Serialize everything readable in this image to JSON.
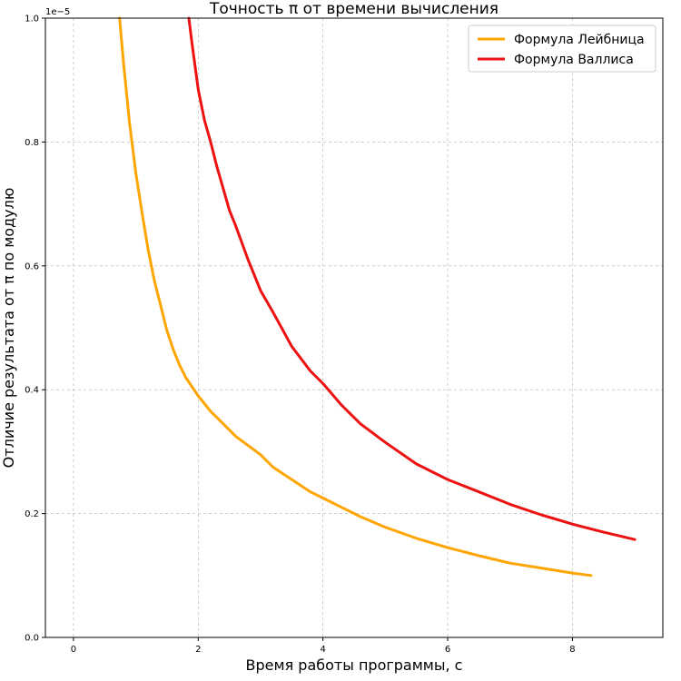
{
  "chart_data": {
    "type": "line",
    "title": "Точность π от времени вычисления",
    "xlabel": "Время работы программы, с",
    "ylabel": "Отличие результата от π по модулю",
    "y_offset_label": "1e−5",
    "xlim": [
      -0.45,
      9.45
    ],
    "ylim": [
      0.0,
      1.0
    ],
    "x_ticks": [
      0,
      2,
      4,
      6,
      8
    ],
    "y_ticks": [
      0.0,
      0.2,
      0.4,
      0.6,
      0.8,
      1.0
    ],
    "x_tick_labels": [
      "0",
      "2",
      "4",
      "6",
      "8"
    ],
    "y_tick_labels": [
      "0.0",
      "0.2",
      "0.4",
      "0.6",
      "0.8",
      "1.0"
    ],
    "grid": true,
    "legend_position": "top-right",
    "series": [
      {
        "name": "Формула Лейбница",
        "color": "#FFA500",
        "x": [
          0.74,
          0.8,
          0.9,
          1.0,
          1.1,
          1.2,
          1.3,
          1.4,
          1.5,
          1.6,
          1.7,
          1.8,
          2.0,
          2.2,
          2.4,
          2.6,
          2.8,
          3.0,
          3.2,
          3.5,
          3.8,
          4.0,
          4.3,
          4.6,
          5.0,
          5.5,
          6.0,
          6.5,
          7.0,
          7.5,
          8.0,
          8.3
        ],
        "y": [
          1.0,
          0.93,
          0.83,
          0.75,
          0.685,
          0.625,
          0.575,
          0.535,
          0.495,
          0.465,
          0.44,
          0.42,
          0.39,
          0.365,
          0.345,
          0.325,
          0.31,
          0.295,
          0.275,
          0.255,
          0.235,
          0.225,
          0.21,
          0.195,
          0.178,
          0.16,
          0.145,
          0.132,
          0.12,
          0.112,
          0.104,
          0.1
        ]
      },
      {
        "name": "Формула Валлиса",
        "color": "#EE1111",
        "x": [
          1.85,
          1.9,
          2.0,
          2.1,
          2.2,
          2.3,
          2.4,
          2.5,
          2.6,
          2.8,
          3.0,
          3.2,
          3.5,
          3.8,
          4.0,
          4.3,
          4.6,
          5.0,
          5.5,
          6.0,
          6.5,
          7.0,
          7.5,
          8.0,
          8.5,
          9.0
        ],
        "y": [
          1.0,
          0.96,
          0.885,
          0.835,
          0.8,
          0.76,
          0.725,
          0.69,
          0.665,
          0.61,
          0.56,
          0.525,
          0.47,
          0.43,
          0.41,
          0.375,
          0.345,
          0.315,
          0.28,
          0.255,
          0.235,
          0.215,
          0.198,
          0.183,
          0.17,
          0.158
        ]
      }
    ]
  }
}
